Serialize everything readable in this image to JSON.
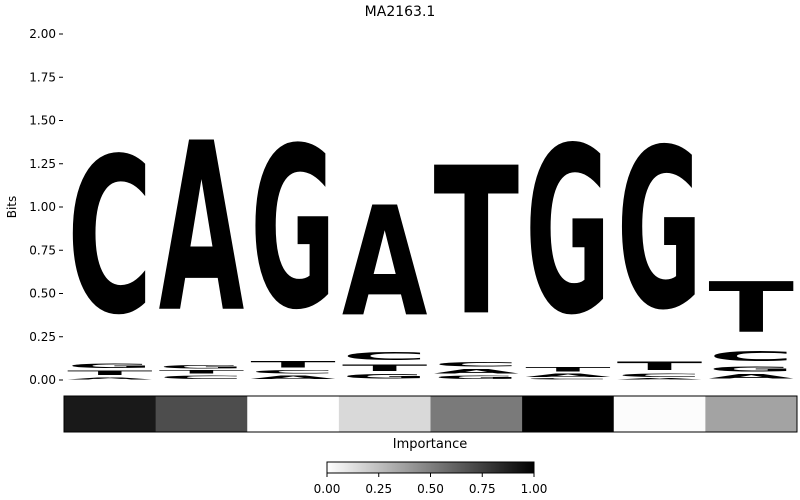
{
  "chart_data": {
    "type": "sequence-logo",
    "title": "MA2163.1",
    "ylabel": "Bits",
    "ylim": [
      0,
      2.0
    ],
    "yticks": [
      "0.00",
      "0.25",
      "0.50",
      "0.75",
      "1.00",
      "1.25",
      "1.50",
      "1.75",
      "2.00"
    ],
    "colors": {
      "A": "#4caa4c",
      "C": "#4c4cff",
      "G": "#ffbf4c",
      "T": "#ff4c4c"
    },
    "positions": [
      {
        "letters": [
          {
            "base": "A",
            "height": 0.02
          },
          {
            "base": "T",
            "height": 0.04
          },
          {
            "base": "G",
            "height": 0.04
          },
          {
            "base": "C",
            "height": 1.45
          }
        ]
      },
      {
        "letters": [
          {
            "base": "C",
            "height": 0.03
          },
          {
            "base": "T",
            "height": 0.03
          },
          {
            "base": "G",
            "height": 0.03
          },
          {
            "base": "A",
            "height": 1.57
          }
        ]
      },
      {
        "letters": [
          {
            "base": "A",
            "height": 0.03
          },
          {
            "base": "C",
            "height": 0.03
          },
          {
            "base": "T",
            "height": 0.06
          },
          {
            "base": "G",
            "height": 1.5
          }
        ]
      },
      {
        "letters": [
          {
            "base": "G",
            "height": 0.04
          },
          {
            "base": "T",
            "height": 0.06
          },
          {
            "base": "C",
            "height": 0.07
          },
          {
            "base": "A",
            "height": 1.02
          }
        ]
      },
      {
        "letters": [
          {
            "base": "G",
            "height": 0.03
          },
          {
            "base": "A",
            "height": 0.04
          },
          {
            "base": "C",
            "height": 0.04
          },
          {
            "base": "T",
            "height": 1.37
          }
        ]
      },
      {
        "letters": [
          {
            "base": "C",
            "height": 0.01
          },
          {
            "base": "A",
            "height": 0.03
          },
          {
            "base": "T",
            "height": 0.04
          },
          {
            "base": "G",
            "height": 1.55
          }
        ]
      },
      {
        "letters": [
          {
            "base": "A",
            "height": 0.01
          },
          {
            "base": "C",
            "height": 0.03
          },
          {
            "base": "T",
            "height": 0.08
          },
          {
            "base": "G",
            "height": 1.49
          }
        ]
      },
      {
        "letters": [
          {
            "base": "A",
            "height": 0.04
          },
          {
            "base": "G",
            "height": 0.05
          },
          {
            "base": "C",
            "height": 0.09
          },
          {
            "base": "T",
            "height": 0.47
          }
        ]
      }
    ],
    "importance": {
      "label": "Importance",
      "values": [
        0.9,
        0.7,
        0.0,
        0.15,
        0.52,
        1.0,
        0.01,
        0.36
      ],
      "colorbar": {
        "min": 0,
        "max": 1,
        "ticks": [
          "0.00",
          "0.25",
          "0.50",
          "0.75",
          "1.00"
        ]
      }
    }
  }
}
